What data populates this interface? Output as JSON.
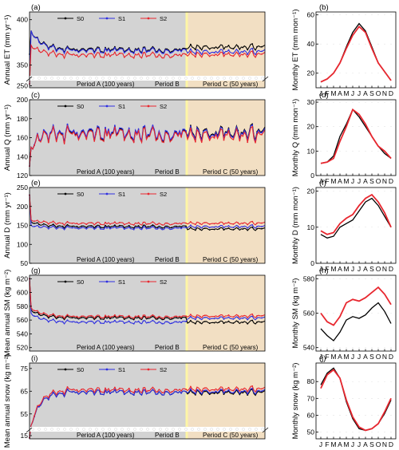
{
  "colors": {
    "S0": "#000000",
    "S1": "#2f2fe0",
    "S2": "#e8272f",
    "periodA_bg": "#d3d3d3",
    "periodC_bg": "#f2dfc3",
    "periodB_line": "#fdf6a6"
  },
  "periods": {
    "A": "Period A (100 years)",
    "B": "Period B",
    "C": "Period C (50 years)"
  },
  "months": [
    "J",
    "F",
    "M",
    "A",
    "M",
    "J",
    "J",
    "A",
    "S",
    "O",
    "N",
    "D"
  ],
  "chart_data": [
    {
      "panel": "(a)",
      "type": "line",
      "ylabel": "Annual ET (mm yr⁻¹)",
      "x_years": [
        1,
        150
      ],
      "yticks": [
        350,
        400
      ],
      "yticks_low": [
        250
      ],
      "ylim_upper": [
        340,
        405
      ],
      "ylim_lower": [
        245,
        262
      ],
      "axis_break": true,
      "series": [
        {
          "name": "S0",
          "start": 362,
          "spin": 388,
          "mean": 367,
          "amp": 4,
          "periodC_mean": 370
        },
        {
          "name": "S1",
          "start": 255,
          "spin": 388,
          "mean": 366,
          "amp": 4,
          "periodC_mean": 365
        },
        {
          "name": "S2",
          "start": 255,
          "spin": 372,
          "mean": 361,
          "amp": 4,
          "periodC_mean": 362
        }
      ]
    },
    {
      "panel": "(b)",
      "type": "line",
      "ylabel": "Monthly ET (mm mon⁻¹)",
      "yticks": [
        20,
        40,
        60
      ],
      "ylim": [
        10,
        62
      ],
      "series": [
        {
          "name": "S0",
          "values": [
            14,
            16,
            20,
            27,
            38,
            48,
            54,
            49,
            38,
            27,
            21,
            15
          ]
        },
        {
          "name": "S2",
          "values": [
            14,
            16,
            20,
            27,
            37,
            46,
            52,
            48,
            37,
            27,
            21,
            15
          ]
        }
      ]
    },
    {
      "panel": "(c)",
      "type": "line",
      "ylabel": "Annual Q (mm yr⁻¹)",
      "x_years": [
        1,
        150
      ],
      "yticks": [
        120,
        140,
        160,
        180,
        200
      ],
      "ylim": [
        120,
        200
      ],
      "series": [
        {
          "name": "S0",
          "start": 130,
          "spin": 150,
          "mean": 164,
          "amp": 10,
          "periodC_mean": 166
        },
        {
          "name": "S1",
          "start": 130,
          "spin": 150,
          "mean": 165,
          "amp": 10,
          "periodC_mean": 165
        },
        {
          "name": "S2",
          "start": 130,
          "spin": 150,
          "mean": 163,
          "amp": 10,
          "periodC_mean": 163
        }
      ]
    },
    {
      "panel": "(d)",
      "type": "line",
      "ylabel": "Monthly Q (mm mon⁻¹)",
      "yticks": [
        0,
        10,
        20,
        30
      ],
      "ylim": [
        0,
        31
      ],
      "series": [
        {
          "name": "S0",
          "values": [
            5,
            5.5,
            8,
            16,
            21,
            27,
            24,
            20,
            16,
            12,
            9,
            7
          ]
        },
        {
          "name": "S2",
          "values": [
            5,
            5.5,
            7,
            14,
            20,
            27,
            25,
            21,
            16,
            12,
            10,
            7
          ]
        }
      ]
    },
    {
      "panel": "(e)",
      "type": "line",
      "ylabel": "Annual D (mm yr⁻¹)",
      "x_years": [
        1,
        150
      ],
      "yticks": [
        50,
        100,
        150,
        200,
        250
      ],
      "ylim": [
        50,
        250
      ],
      "series": [
        {
          "name": "S0",
          "start": 230,
          "spin": 160,
          "mean": 147,
          "amp": 5,
          "periodC_mean": 141
        },
        {
          "name": "S1",
          "start": 230,
          "spin": 150,
          "mean": 143,
          "amp": 5,
          "periodC_mean": 147
        },
        {
          "name": "S2",
          "start": 230,
          "spin": 165,
          "mean": 155,
          "amp": 5,
          "periodC_mean": 156
        }
      ]
    },
    {
      "panel": "(f)",
      "type": "line",
      "ylabel": "Monthly D (mm mon⁻¹)",
      "yticks": [
        0,
        10,
        20
      ],
      "ylim": [
        0,
        21
      ],
      "series": [
        {
          "name": "S0",
          "values": [
            8,
            7,
            7.5,
            10,
            11,
            12,
            14.5,
            17,
            18,
            16,
            13,
            10
          ]
        },
        {
          "name": "S2",
          "values": [
            9,
            8,
            8.5,
            11,
            12.5,
            13.5,
            16,
            18,
            19,
            17,
            14,
            10
          ]
        }
      ]
    },
    {
      "panel": "(g)",
      "type": "line",
      "ylabel": "Mean annual SM (kg m⁻²)",
      "x_years": [
        1,
        150
      ],
      "yticks": [
        520,
        540,
        560,
        580,
        600,
        620
      ],
      "ylim": [
        515,
        625
      ],
      "series": [
        {
          "name": "S0",
          "start": 620,
          "spin": 575,
          "mean": 563,
          "amp": 3,
          "periodC_mean": 557
        },
        {
          "name": "S1",
          "start": 620,
          "spin": 570,
          "mean": 557,
          "amp": 3,
          "periodC_mean": 563
        },
        {
          "name": "S2",
          "start": 620,
          "spin": 578,
          "mean": 565,
          "amp": 3,
          "periodC_mean": 566
        }
      ]
    },
    {
      "panel": "(h)",
      "type": "line",
      "ylabel": "Monthly SM (kg m⁻²)",
      "yticks": [
        540,
        560,
        580
      ],
      "ylim": [
        538,
        582
      ],
      "series": [
        {
          "name": "S0",
          "values": [
            551,
            547,
            544,
            549,
            556,
            558,
            557,
            559,
            563,
            566,
            561,
            554
          ]
        },
        {
          "name": "S2",
          "values": [
            560,
            555,
            553,
            558,
            566,
            568,
            567,
            569,
            572,
            575,
            571,
            565
          ]
        }
      ]
    },
    {
      "panel": "(i)",
      "type": "line",
      "ylabel": "Mean annual snow (kg m⁻²)",
      "x_years": [
        1,
        150
      ],
      "yticks": [
        55,
        65,
        75
      ],
      "yticks_low": [
        15
      ],
      "ylim_upper": [
        50,
        76
      ],
      "ylim_lower": [
        12,
        18
      ],
      "axis_break": true,
      "series": [
        {
          "name": "S0",
          "start": 13,
          "spin": 50,
          "mean": 64.5,
          "amp": 1.5,
          "periodC_mean": 64.5
        },
        {
          "name": "S1",
          "start": 13,
          "spin": 50,
          "mean": 64.5,
          "amp": 1.5,
          "periodC_mean": 65
        },
        {
          "name": "S2",
          "start": 13,
          "spin": 50,
          "mean": 65.5,
          "amp": 1.5,
          "periodC_mean": 66
        }
      ]
    },
    {
      "panel": "(j)",
      "type": "line",
      "ylabel": "Monthly snow (kg m⁻²)",
      "yticks": [
        50,
        60,
        70,
        80
      ],
      "ylim": [
        46,
        91
      ],
      "series": [
        {
          "name": "S0",
          "values": [
            78,
            85,
            88,
            82,
            68,
            58,
            52,
            51,
            52,
            55,
            61,
            69
          ]
        },
        {
          "name": "S2",
          "values": [
            76,
            84,
            87,
            82,
            69,
            59,
            53,
            51,
            52,
            55,
            62,
            70
          ]
        }
      ]
    }
  ]
}
